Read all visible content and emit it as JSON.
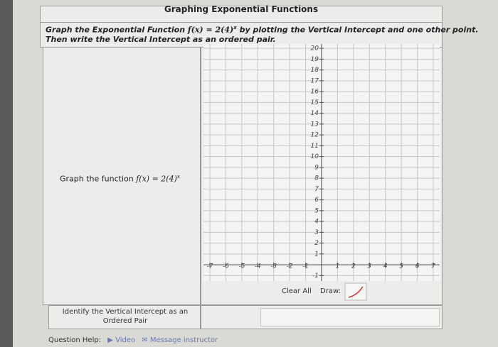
{
  "header": {
    "title": "Graphing Exponential Functions"
  },
  "instruction": {
    "lead": "Graph the Exponential Function",
    "func": "f(x) = 2(4)",
    "exp": "x",
    "rest": "by plotting the Vertical Intercept and one other point.",
    "line2": "Then write the Vertical Intercept as an ordered pair."
  },
  "prompt": {
    "text": "Graph the function",
    "func": "f(x) = 2(4)",
    "exp": "x"
  },
  "graph": {
    "xlim": [
      -7.4,
      7.4
    ],
    "ylim": [
      -1.5,
      20.4
    ],
    "xticks": [
      -7,
      -6,
      -5,
      -4,
      -3,
      -2,
      -1,
      1,
      2,
      3,
      4,
      5,
      6,
      7
    ],
    "yticks": [
      -1,
      1,
      2,
      3,
      4,
      5,
      6,
      7,
      8,
      9,
      10,
      11,
      12,
      13,
      14,
      15,
      16,
      17,
      18,
      19,
      20
    ],
    "grid": true
  },
  "controls": {
    "clear": "Clear All",
    "draw": "Draw:"
  },
  "answer": {
    "label": "Identify the Vertical Intercept as an Ordered Pair"
  },
  "help": {
    "label": "Question Help:",
    "video": "Video",
    "message": "Message instructor"
  }
}
